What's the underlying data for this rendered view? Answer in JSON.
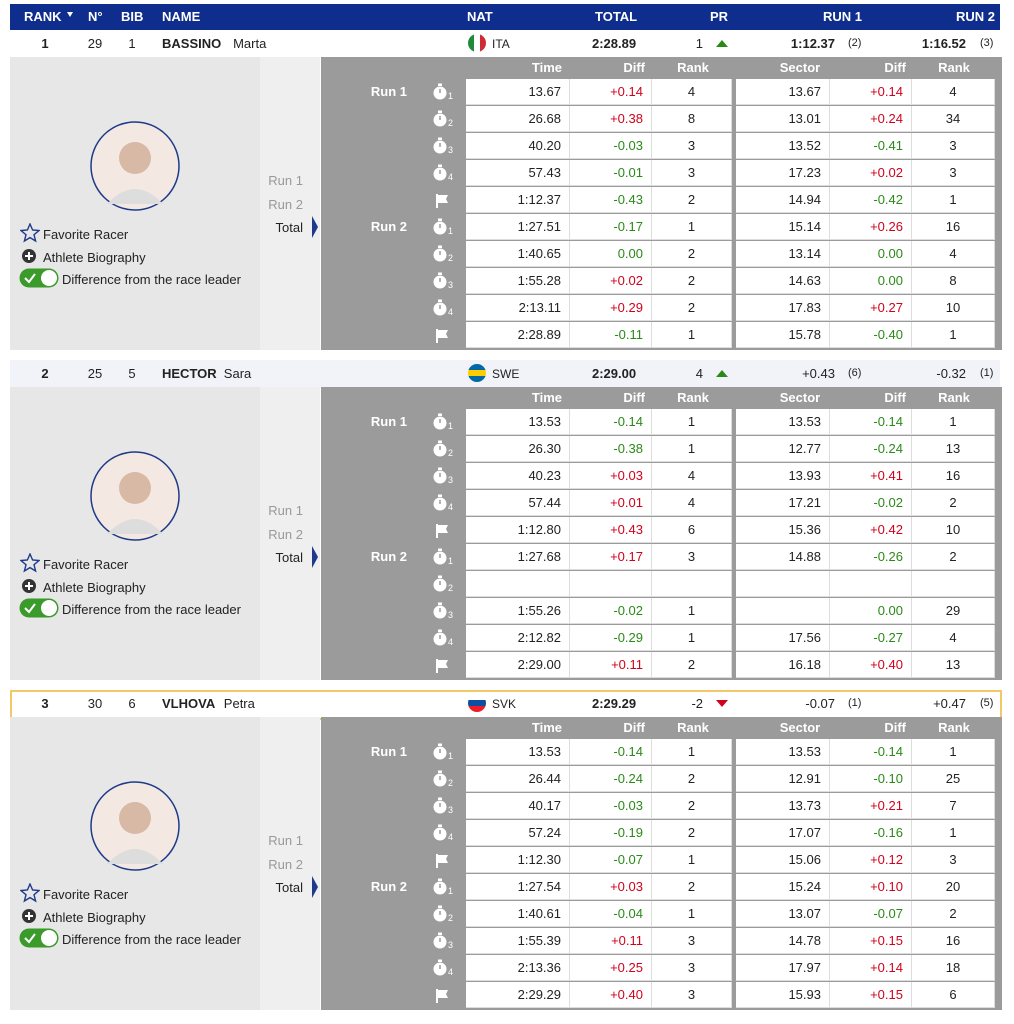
{
  "header": {
    "columns": [
      "RANK",
      "N°",
      "BIB",
      "NAME",
      "NAT",
      "TOTAL",
      "PR",
      "RUN 1",
      "RUN 2"
    ]
  },
  "detail": {
    "links": [
      "Favorite Racer",
      "Athlete Biography",
      "Difference from the race leader"
    ],
    "nav": [
      "Run 1",
      "Run 2",
      "Total"
    ],
    "table_headers": [
      "Time",
      "Diff",
      "Rank",
      "Sector",
      "Diff",
      "Rank"
    ],
    "run_labels": [
      "Run 1",
      "Run 2"
    ]
  },
  "racers": [
    {
      "rank": 1,
      "number": 29,
      "bib": 1,
      "last_name": "BASSINO",
      "first_name": "Marta",
      "nat": "ITA",
      "flag": [
        "#1e8a3a",
        "#ffffff",
        "#ce2b37"
      ],
      "total": "2:28.89",
      "pr": 1,
      "pr_trend": "up",
      "run1": "1:12.37",
      "run1_rank": "(2)",
      "run2": "1:16.52",
      "run2_rank": "(3)",
      "highlight": false,
      "bold_run1": true,
      "rows": [
        [
          1,
          "13.67",
          "+0.14",
          4,
          "13.67",
          "+0.14",
          4
        ],
        [
          2,
          "26.68",
          "+0.38",
          8,
          "13.01",
          "+0.24",
          34
        ],
        [
          3,
          "40.20",
          "-0.03",
          3,
          "13.52",
          "-0.41",
          3
        ],
        [
          4,
          "57.43",
          "-0.01",
          3,
          "17.23",
          "+0.02",
          3
        ],
        [
          null,
          "1:12.37",
          "-0.43",
          2,
          "14.94",
          "-0.42",
          1
        ],
        [
          1,
          "1:27.51",
          "-0.17",
          1,
          "15.14",
          "+0.26",
          16
        ],
        [
          2,
          "1:40.65",
          "0.00",
          2,
          "13.14",
          "0.00",
          4
        ],
        [
          3,
          "1:55.28",
          "+0.02",
          2,
          "14.63",
          "0.00",
          8
        ],
        [
          4,
          "2:13.11",
          "+0.29",
          2,
          "17.83",
          "+0.27",
          10
        ],
        [
          null,
          "2:28.89",
          "-0.11",
          1,
          "15.78",
          "-0.40",
          1
        ]
      ]
    },
    {
      "rank": 2,
      "number": 25,
      "bib": 5,
      "last_name": "HECTOR",
      "first_name": "Sara",
      "nat": "SWE",
      "flag": [
        "#006aa7",
        "#fecc00",
        "#006aa7"
      ],
      "total": "2:29.00",
      "pr": 4,
      "pr_trend": "up",
      "run1": "+0.43",
      "run1_rank": "(6)",
      "run2": "-0.32",
      "run2_rank": "(1)",
      "highlight": false,
      "bold_run1": false,
      "rows": [
        [
          1,
          "13.53",
          "-0.14",
          1,
          "13.53",
          "-0.14",
          1
        ],
        [
          2,
          "26.30",
          "-0.38",
          1,
          "12.77",
          "-0.24",
          13
        ],
        [
          3,
          "40.23",
          "+0.03",
          4,
          "13.93",
          "+0.41",
          16
        ],
        [
          4,
          "57.44",
          "+0.01",
          4,
          "17.21",
          "-0.02",
          2
        ],
        [
          null,
          "1:12.80",
          "+0.43",
          6,
          "15.36",
          "+0.42",
          10
        ],
        [
          1,
          "1:27.68",
          "+0.17",
          3,
          "14.88",
          "-0.26",
          2
        ],
        [
          2,
          null,
          null,
          null,
          null,
          null,
          null
        ],
        [
          3,
          "1:55.26",
          "-0.02",
          1,
          null,
          "0.00",
          29
        ],
        [
          4,
          "2:12.82",
          "-0.29",
          1,
          "17.56",
          "-0.27",
          4
        ],
        [
          null,
          "2:29.00",
          "+0.11",
          2,
          "16.18",
          "+0.40",
          13
        ]
      ]
    },
    {
      "rank": 3,
      "number": 30,
      "bib": 6,
      "last_name": "VLHOVA",
      "first_name": "Petra",
      "nat": "SVK",
      "flag": [
        "#ffffff",
        "#0b4ea2",
        "#ee1c25"
      ],
      "total": "2:29.29",
      "pr": -2,
      "pr_trend": "down",
      "run1": "-0.07",
      "run1_rank": "(1)",
      "run2": "+0.47",
      "run2_rank": "(5)",
      "highlight": true,
      "bold_run1": false,
      "rows": [
        [
          1,
          "13.53",
          "-0.14",
          1,
          "13.53",
          "-0.14",
          1
        ],
        [
          2,
          "26.44",
          "-0.24",
          2,
          "12.91",
          "-0.10",
          25
        ],
        [
          3,
          "40.17",
          "-0.03",
          2,
          "13.73",
          "+0.21",
          7
        ],
        [
          4,
          "57.24",
          "-0.19",
          2,
          "17.07",
          "-0.16",
          1
        ],
        [
          null,
          "1:12.30",
          "-0.07",
          1,
          "15.06",
          "+0.12",
          3
        ],
        [
          1,
          "1:27.54",
          "+0.03",
          2,
          "15.24",
          "+0.10",
          20
        ],
        [
          2,
          "1:40.61",
          "-0.04",
          1,
          "13.07",
          "-0.07",
          2
        ],
        [
          3,
          "1:55.39",
          "+0.11",
          3,
          "14.78",
          "+0.15",
          16
        ],
        [
          4,
          "2:13.36",
          "+0.25",
          3,
          "17.97",
          "+0.14",
          18
        ],
        [
          null,
          "2:29.29",
          "+0.40",
          3,
          "15.93",
          "+0.15",
          6
        ]
      ]
    }
  ]
}
